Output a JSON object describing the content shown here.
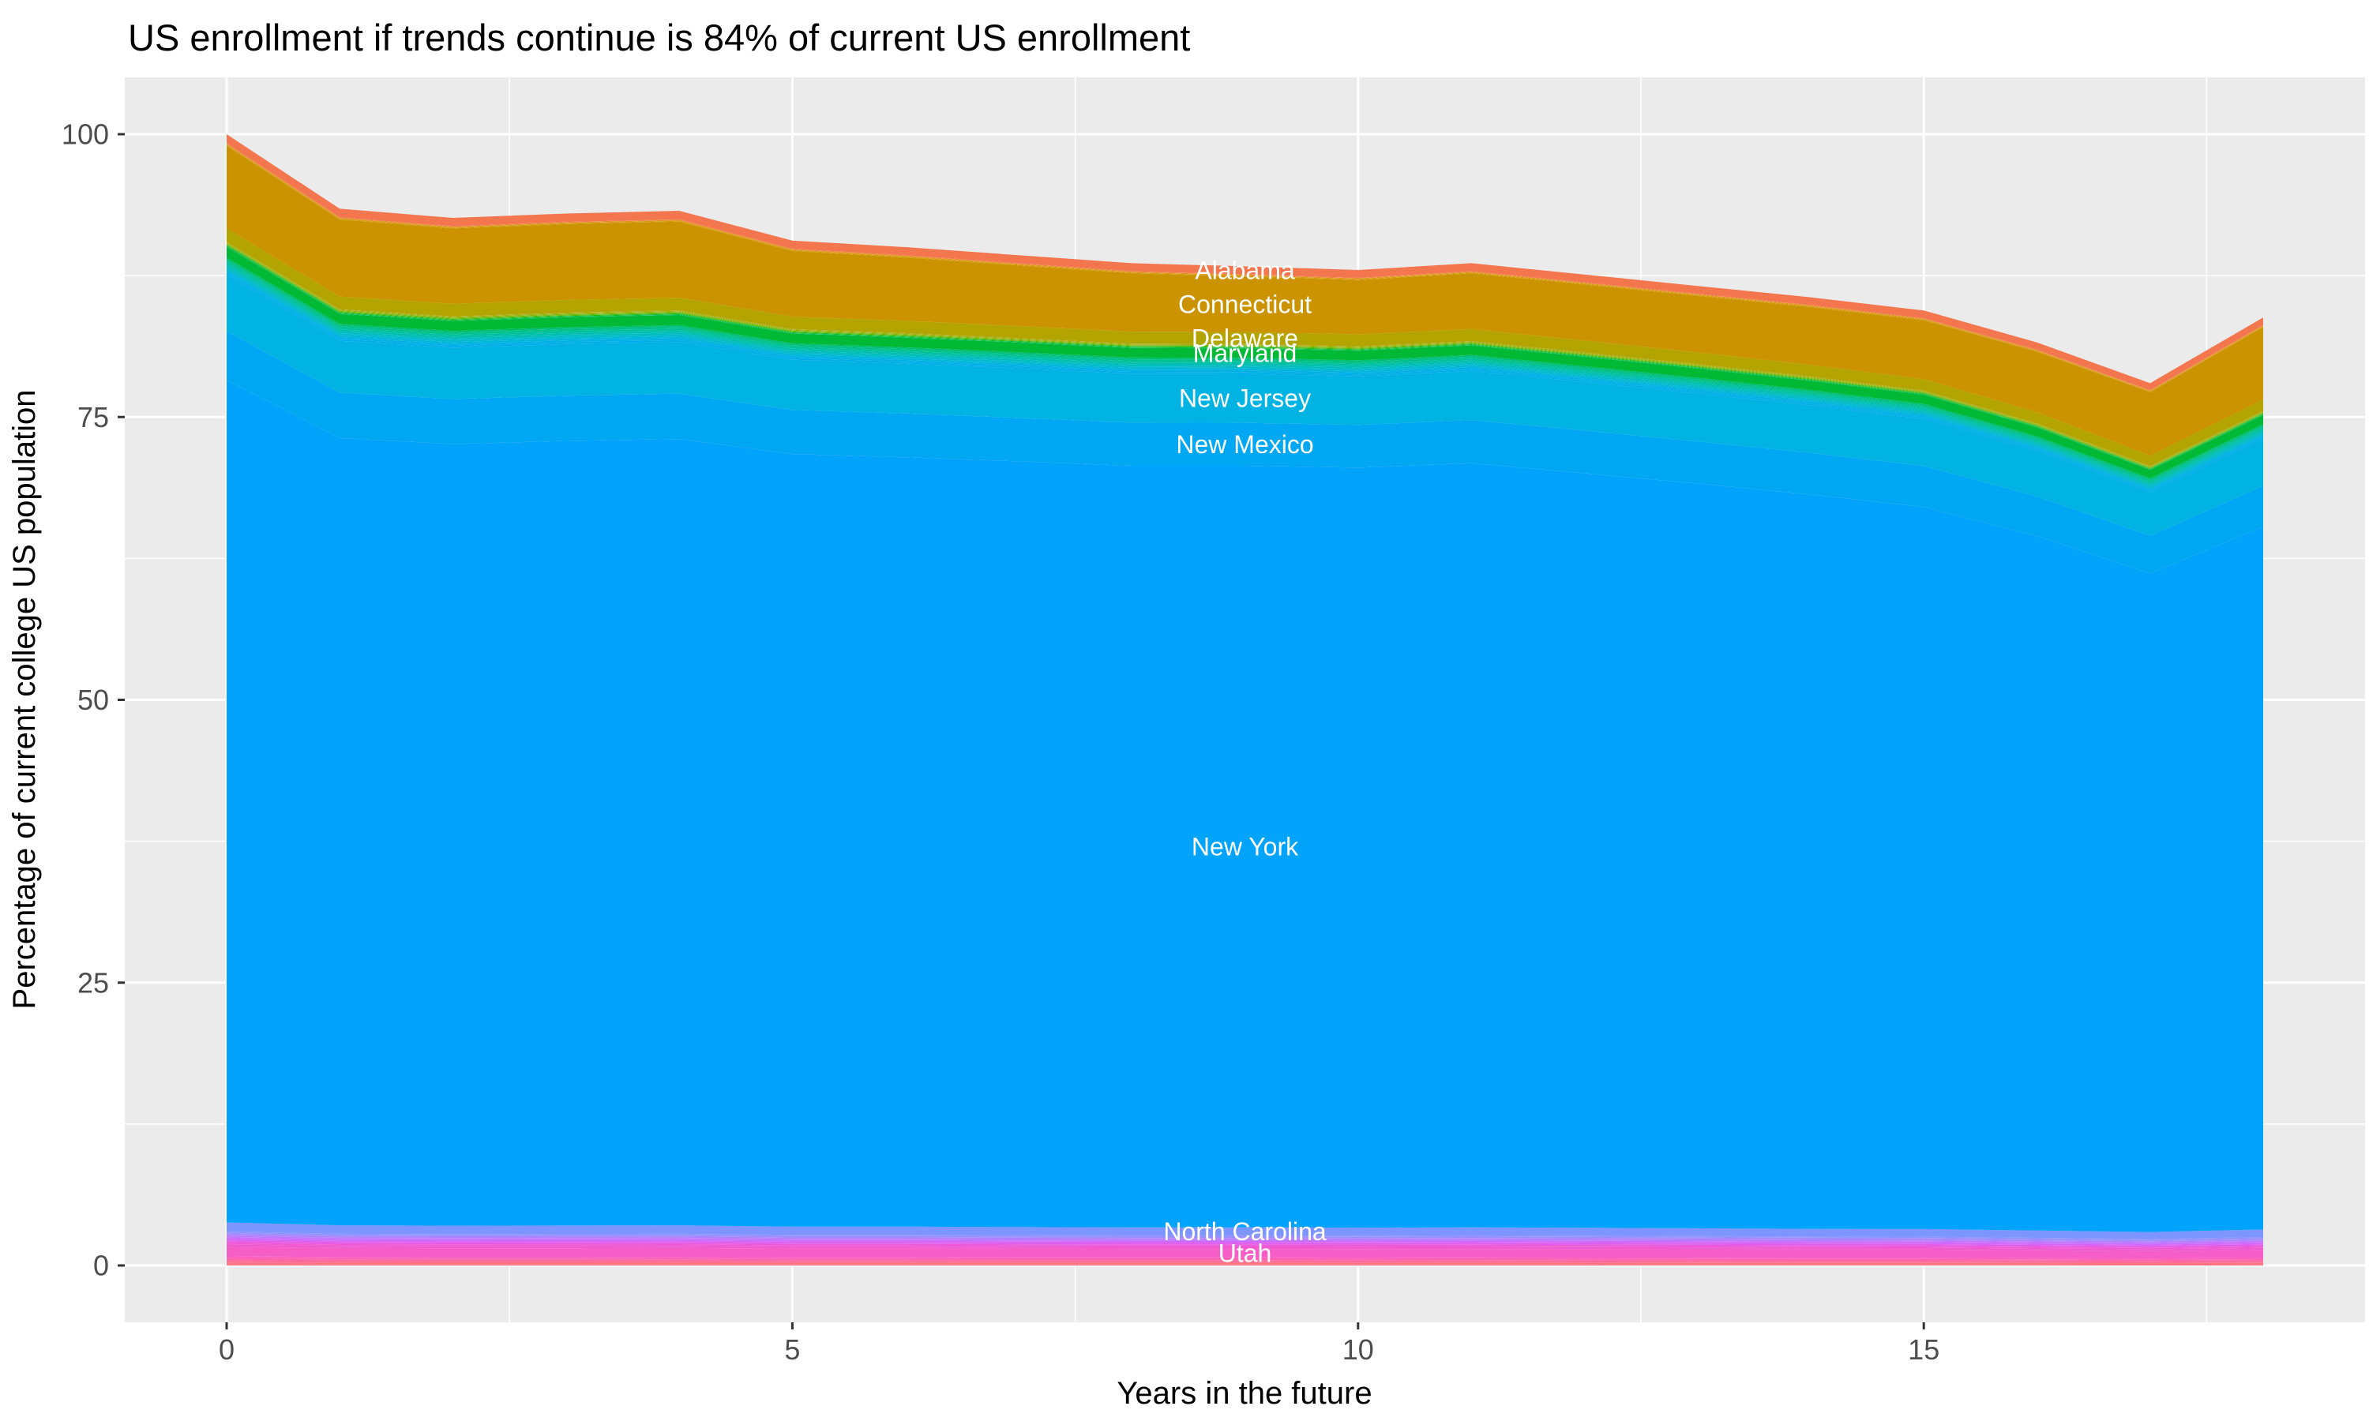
{
  "title": "US enrollment if trends continue is 84% of current US enrollment",
  "axes": {
    "x_label": "Years in the future",
    "y_label": "Percentage of current college US population",
    "x_ticks": [
      0,
      5,
      10,
      15
    ],
    "y_ticks": [
      0,
      25,
      50,
      75,
      100
    ],
    "x_minor": [
      2.5,
      7.5,
      12.5,
      17.5
    ],
    "y_minor": [
      12.5,
      37.5,
      62.5,
      87.5
    ],
    "x_range": [
      -0.9,
      18.9
    ],
    "y_range": [
      -5,
      105
    ]
  },
  "panel": {
    "bg": "#EBEBEB",
    "grid_color": "#FFFFFF",
    "tick_color": "#333333",
    "tick_label_color": "#4D4D4D",
    "area_label_color": "#FFFFFF"
  },
  "chart_data": {
    "type": "area",
    "stacked": true,
    "legend": "none",
    "label_year": 9,
    "x": [
      0,
      1,
      2,
      3,
      4,
      5,
      6,
      7,
      8,
      9,
      10,
      11,
      12,
      13,
      14,
      15,
      16,
      17,
      18
    ],
    "totals": [
      100,
      93.4,
      92.6,
      93.0,
      93.2,
      90.6,
      90.0,
      89.3,
      88.6,
      88.3,
      88.0,
      88.6,
      87.6,
      86.6,
      85.6,
      84.4,
      81.6,
      78.0,
      83.8
    ],
    "series": [
      {
        "name": "Alabama",
        "labeled": true,
        "color": "#F3764E",
        "values": [
          0.8,
          0.75,
          0.74,
          0.74,
          0.75,
          0.72,
          0.72,
          0.71,
          0.71,
          0.71,
          0.7,
          0.71,
          0.7,
          0.69,
          0.68,
          0.68,
          0.65,
          0.62,
          0.67
        ]
      },
      {
        "name": "other states 1",
        "group": true,
        "colors": [
          "#F1814D",
          "#E98A1F",
          "#E19100",
          "#D89600",
          "#D09A00"
        ],
        "values": [
          0.22,
          0.21,
          0.2,
          0.2,
          0.21,
          0.2,
          0.2,
          0.2,
          0.19,
          0.19,
          0.19,
          0.19,
          0.19,
          0.19,
          0.19,
          0.19,
          0.18,
          0.17,
          0.18
        ]
      },
      {
        "name": "Connecticut",
        "labeled": true,
        "color": "#CC9300",
        "values": [
          7.3,
          6.8,
          6.65,
          6.7,
          6.72,
          5.8,
          5.6,
          5.35,
          5.15,
          4.9,
          4.8,
          4.92,
          4.95,
          5.0,
          5.1,
          5.2,
          5.35,
          5.6,
          6.4
        ]
      },
      {
        "name": "Delaware",
        "labeled": true,
        "color": "#B3A400",
        "values": [
          1.2,
          1.12,
          1.11,
          1.12,
          1.12,
          1.09,
          1.08,
          1.07,
          1.06,
          1.06,
          1.06,
          1.06,
          1.05,
          1.04,
          1.03,
          1.01,
          0.98,
          0.94,
          1.01
        ]
      },
      {
        "name": "other states 2",
        "group": true,
        "colors": [
          "#ABA800",
          "#A2AC00",
          "#97AF00",
          "#8AB200",
          "#7CB500",
          "#6BB800",
          "#54BA00",
          "#33BD00",
          "#00BE17",
          "#00BF3F",
          "#00C05B"
        ],
        "values": [
          0.44,
          0.41,
          0.41,
          0.41,
          0.41,
          0.4,
          0.4,
          0.39,
          0.39,
          0.39,
          0.39,
          0.39,
          0.39,
          0.38,
          0.38,
          0.37,
          0.36,
          0.34,
          0.37
        ]
      },
      {
        "name": "Maryland",
        "labeled": true,
        "color": "#00B934",
        "values": [
          0.95,
          0.89,
          0.88,
          0.88,
          0.89,
          0.86,
          0.86,
          0.85,
          0.84,
          0.84,
          0.84,
          0.84,
          0.83,
          0.82,
          0.81,
          0.8,
          0.78,
          0.74,
          0.8
        ]
      },
      {
        "name": "other states 3",
        "group": true,
        "colors": [
          "#00C073",
          "#00C189",
          "#00C19D",
          "#00BFAF",
          "#00BDBF",
          "#00BACE",
          "#00B6DB",
          "#00B1E5",
          "#00AFE9"
        ],
        "values": [
          1.6,
          1.49,
          1.48,
          1.49,
          1.49,
          1.45,
          1.44,
          1.43,
          1.42,
          1.41,
          1.41,
          1.42,
          1.4,
          1.39,
          1.37,
          1.35,
          1.31,
          1.25,
          1.34
        ]
      },
      {
        "name": "New Jersey",
        "labeled": true,
        "color": "#00B3E3",
        "values": [
          4.9,
          4.58,
          4.54,
          4.56,
          4.57,
          4.44,
          4.41,
          4.38,
          4.34,
          4.33,
          4.31,
          4.34,
          4.29,
          4.24,
          4.19,
          4.14,
          4.0,
          3.82,
          4.11
        ]
      },
      {
        "name": "New Mexico",
        "labeled": true,
        "color": "#00A8F4",
        "values": [
          4.3,
          4.02,
          3.98,
          4.0,
          4.01,
          3.9,
          3.87,
          3.84,
          3.81,
          3.8,
          3.78,
          3.81,
          3.77,
          3.72,
          3.68,
          3.63,
          3.51,
          3.35,
          3.6
        ]
      },
      {
        "name": "New York",
        "labeled": true,
        "color": "#02A3FB",
        "values": [
          74.49,
          69.59,
          69.09,
          69.36,
          69.51,
          68.3,
          68.01,
          67.69,
          67.32,
          67.32,
          67.18,
          67.55,
          66.7,
          65.83,
          64.91,
          63.83,
          61.39,
          58.2,
          62.14
        ]
      },
      {
        "name": "North Carolina",
        "labeled": true,
        "color": "#7D96FF",
        "values": [
          0.8,
          0.75,
          0.74,
          0.74,
          0.75,
          0.72,
          0.72,
          0.71,
          0.71,
          0.71,
          0.7,
          0.71,
          0.7,
          0.69,
          0.68,
          0.68,
          0.65,
          0.62,
          0.67
        ]
      },
      {
        "name": "other states 4",
        "group": true,
        "colors": [
          "#8E94FF",
          "#9E8CFF",
          "#AE82FF",
          "#BC79FF",
          "#C96DFF",
          "#D565F7",
          "#E05DEC",
          "#E959DF",
          "#F158D1"
        ],
        "values": [
          1.15,
          1.07,
          1.06,
          1.07,
          1.07,
          1.04,
          1.04,
          1.03,
          1.02,
          1.02,
          1.01,
          1.02,
          1.01,
          1.0,
          0.98,
          0.97,
          0.94,
          0.9,
          0.96
        ]
      },
      {
        "name": "other states 5",
        "group": true,
        "colors": [
          "#EF5AD1"
        ],
        "values": [
          0.2,
          0.19,
          0.19,
          0.19,
          0.19,
          0.18,
          0.18,
          0.18,
          0.18,
          0.18,
          0.18,
          0.18,
          0.18,
          0.17,
          0.17,
          0.17,
          0.16,
          0.16,
          0.17
        ]
      },
      {
        "name": "Utah",
        "labeled": true,
        "color": "#F65EC7",
        "values": [
          0.85,
          0.79,
          0.79,
          0.79,
          0.79,
          0.77,
          0.77,
          0.76,
          0.75,
          0.75,
          0.75,
          0.75,
          0.74,
          0.74,
          0.73,
          0.72,
          0.69,
          0.66,
          0.71
        ]
      },
      {
        "name": "other states 6",
        "group": true,
        "colors": [
          "#FB61BC",
          "#FD63AF",
          "#FF66A1",
          "#FF6B93",
          "#FF7185",
          "#FF7878"
        ],
        "values": [
          0.8,
          0.75,
          0.74,
          0.74,
          0.75,
          0.72,
          0.72,
          0.71,
          0.71,
          0.71,
          0.7,
          0.71,
          0.7,
          0.69,
          0.68,
          0.68,
          0.65,
          0.62,
          0.67
        ]
      }
    ]
  }
}
